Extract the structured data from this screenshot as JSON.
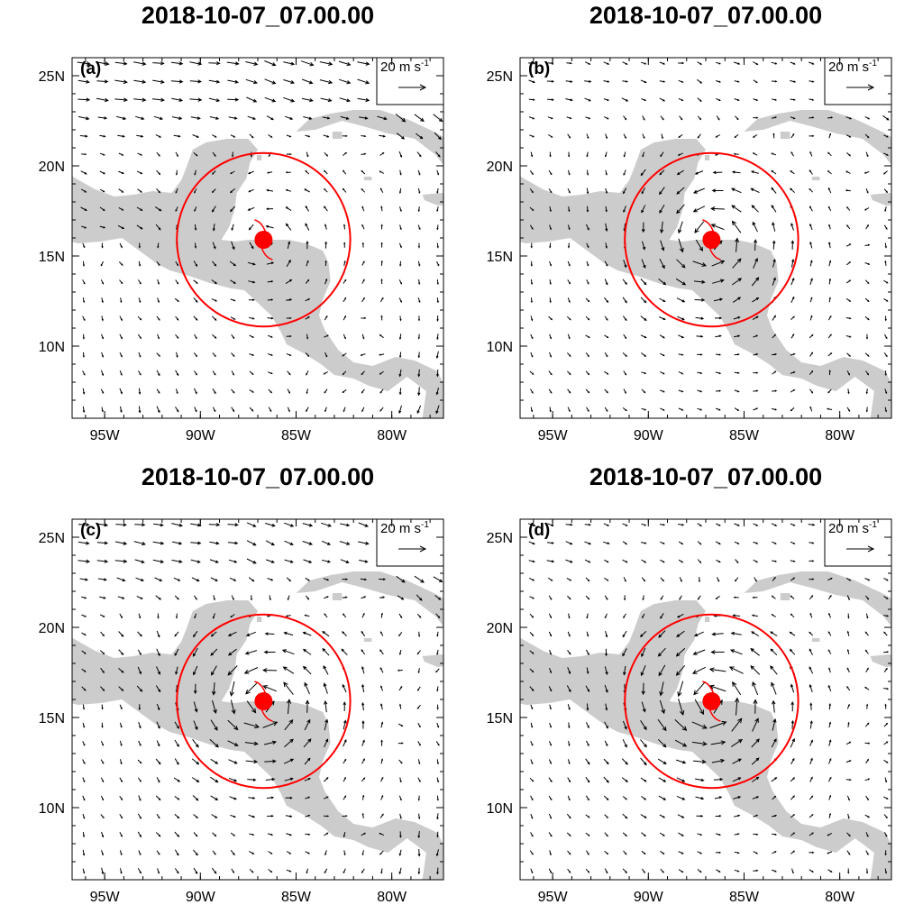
{
  "figure": {
    "panels": [
      {
        "id": "a",
        "label": "(a)",
        "title": "2018-10-07_07.00.00",
        "reference_vector": {
          "value": "20",
          "unit": "m s",
          "exponent": "-1"
        },
        "storm_center": {
          "lon": -86.7,
          "lat": 15.9
        },
        "radius_circle_deg": 4.4
      },
      {
        "id": "b",
        "label": "(b)",
        "title": "2018-10-07_07.00.00",
        "reference_vector": {
          "value": "20",
          "unit": "m s",
          "exponent": "-1"
        },
        "storm_center": {
          "lon": -86.7,
          "lat": 15.9
        },
        "radius_circle_deg": 4.4
      },
      {
        "id": "c",
        "label": "(c)",
        "title": "2018-10-07_07.00.00",
        "reference_vector": {
          "value": "20",
          "unit": "m s",
          "exponent": "-1"
        },
        "storm_center": {
          "lon": -86.7,
          "lat": 15.9
        },
        "radius_circle_deg": 4.4
      },
      {
        "id": "d",
        "label": "(d)",
        "title": "2018-10-07_07.00.00",
        "reference_vector": {
          "value": "20",
          "unit": "m s",
          "exponent": "-1"
        },
        "storm_center": {
          "lon": -86.7,
          "lat": 15.9
        },
        "radius_circle_deg": 4.4
      }
    ],
    "lon_range": [
      -96.7,
      -77.3
    ],
    "lat_range": [
      6.0,
      26.0
    ],
    "lon_ticks": [
      {
        "value": -95,
        "label": "95W"
      },
      {
        "value": -90,
        "label": "90W"
      },
      {
        "value": -85,
        "label": "85W"
      },
      {
        "value": -80,
        "label": "80W"
      }
    ],
    "lat_ticks": [
      {
        "value": 10,
        "label": "10N"
      },
      {
        "value": 15,
        "label": "15N"
      },
      {
        "value": 20,
        "label": "20N"
      },
      {
        "value": 25,
        "label": "25N"
      }
    ],
    "colors": {
      "land": "#cccccc",
      "storm": "#ff0000",
      "vectors": "#000000"
    }
  }
}
